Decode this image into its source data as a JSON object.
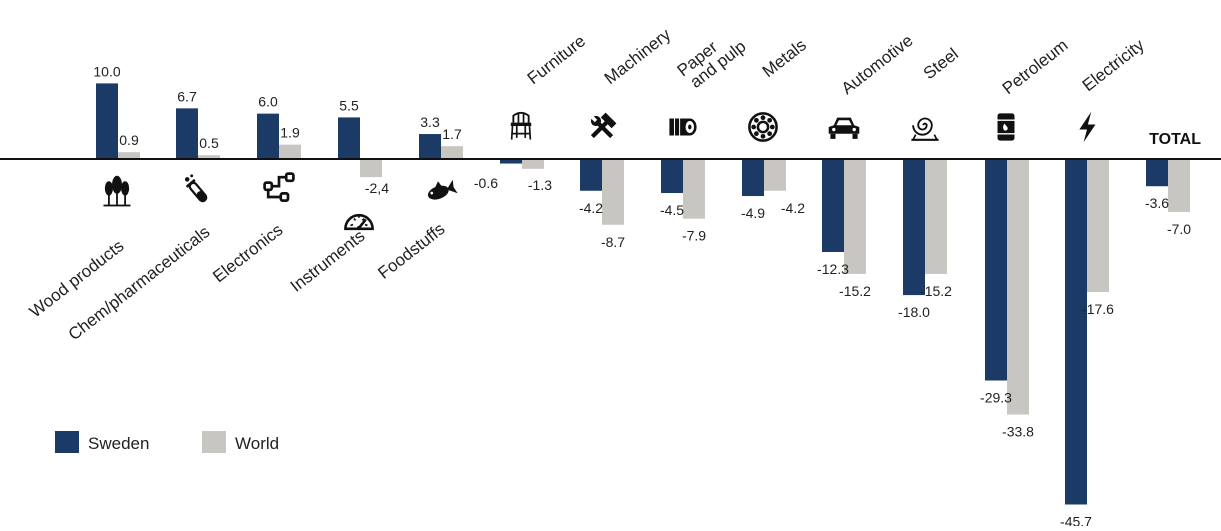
{
  "chart_data": {
    "type": "bar",
    "categories": [
      "Wood products",
      "Chem/pharmaceuticals",
      "Electronics",
      "Instruments",
      "Foodstuffs",
      "Furniture",
      "Machinery",
      "Paper and pulp",
      "Metals",
      "Automotive",
      "Steel",
      "Petroleum",
      "Electricity",
      "TOTAL"
    ],
    "category_icons": [
      "trees-icon",
      "test-tube-icon",
      "circuit-icon",
      "gauge-icon",
      "fish-icon",
      "chair-icon",
      "tools-icon",
      "paper-roll-icon",
      "bearing-icon",
      "car-icon",
      "steel-coil-icon",
      "oil-barrel-icon",
      "lightning-icon",
      ""
    ],
    "series": [
      {
        "name": "Sweden",
        "color": "#1b3a66",
        "values": [
          10.0,
          6.7,
          6.0,
          5.5,
          3.3,
          -0.6,
          -4.2,
          -4.5,
          -4.9,
          -12.3,
          -18.0,
          -29.3,
          -45.7,
          -3.6
        ],
        "labels": [
          "10.0",
          "6.7",
          "6.0",
          "5.5",
          "3.3",
          "-0.6",
          "-4.2",
          "-4.5",
          "-4.9",
          "-12.3",
          "-18.0",
          "-29.3",
          "-45.7",
          "-3.6"
        ]
      },
      {
        "name": "World",
        "color": "#c8c6c1",
        "values": [
          0.9,
          0.5,
          1.9,
          -2.4,
          1.7,
          -1.3,
          -8.7,
          -7.9,
          -4.2,
          -15.2,
          -15.2,
          -33.8,
          -17.6,
          -7.0
        ],
        "labels": [
          "0.9",
          "0.5",
          "1.9",
          "-2,4",
          "1.7",
          "-1.3",
          "-8.7",
          "-7.9",
          "-4.2",
          "-15.2",
          "-15.2",
          "-33.8",
          "-17.6",
          "-7.0"
        ]
      }
    ],
    "title": "",
    "xlabel": "",
    "ylabel": "",
    "ylim": [
      -46,
      10
    ],
    "grid": false,
    "legend_position": "bottom-left"
  }
}
